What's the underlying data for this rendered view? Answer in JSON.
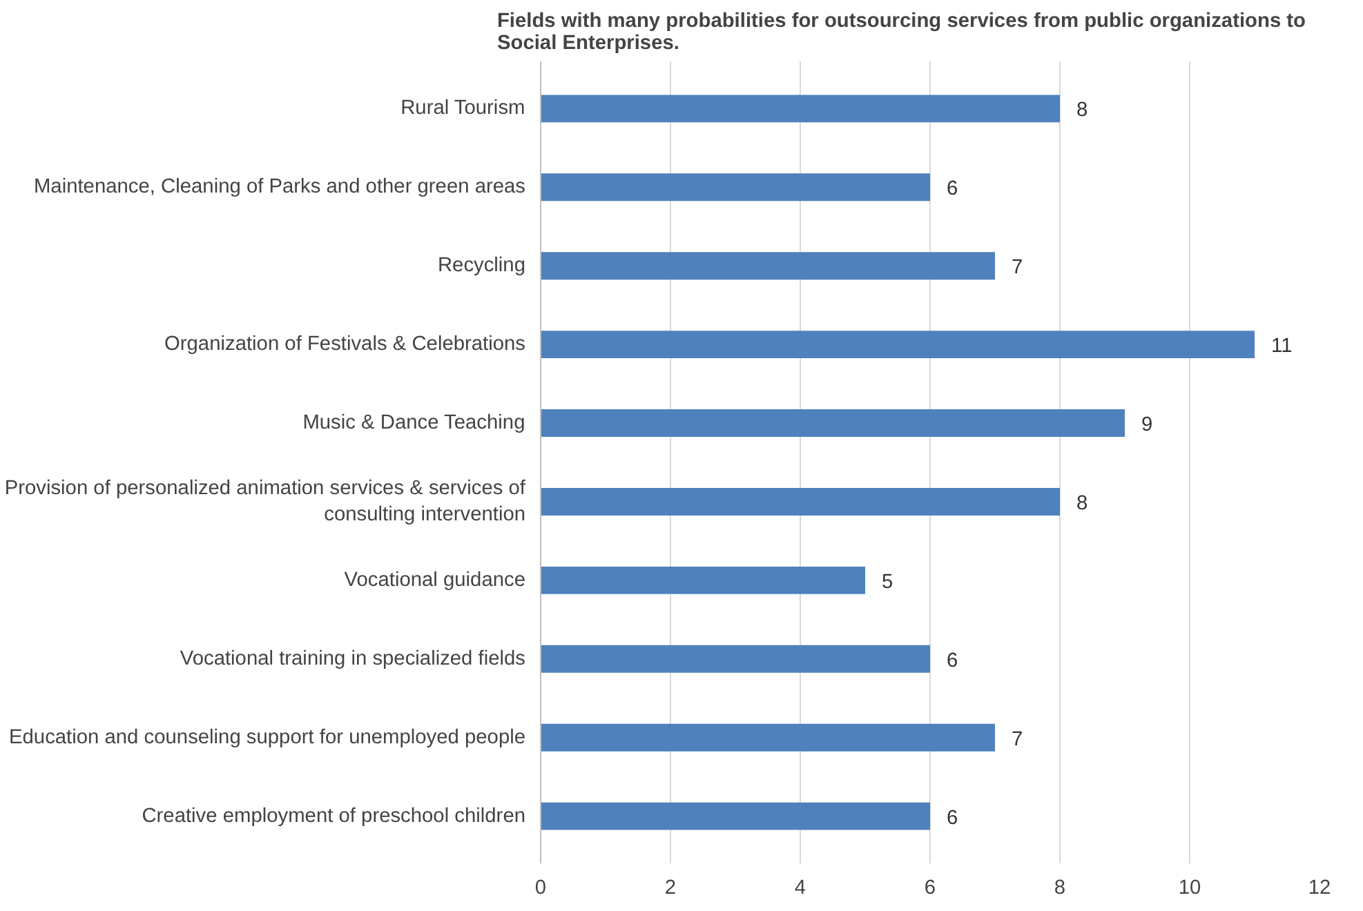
{
  "chart_data": {
    "type": "bar",
    "orientation": "horizontal",
    "title": "Fields with many probabilities for outsourcing services from public organizations to Social Enterprises.",
    "categories": [
      "Rural Tourism",
      "Maintenance, Cleaning of Parks and other green areas",
      "Recycling",
      "Organization of Festivals & Celebrations",
      "Music & Dance Teaching",
      "Provision of personalized animation services & services of consulting intervention",
      "Vocational guidance",
      "Vocational training in specialized fields",
      "Education and counseling support for unemployed people",
      "Creative employment of preschool children"
    ],
    "values": [
      8,
      6,
      7,
      11,
      9,
      8,
      5,
      6,
      7,
      6
    ],
    "color": "#4f81bd",
    "xlim": [
      0,
      12
    ],
    "xticks": [
      0,
      2,
      4,
      6,
      8,
      10,
      12
    ],
    "grid": "x",
    "data_labels": true
  }
}
